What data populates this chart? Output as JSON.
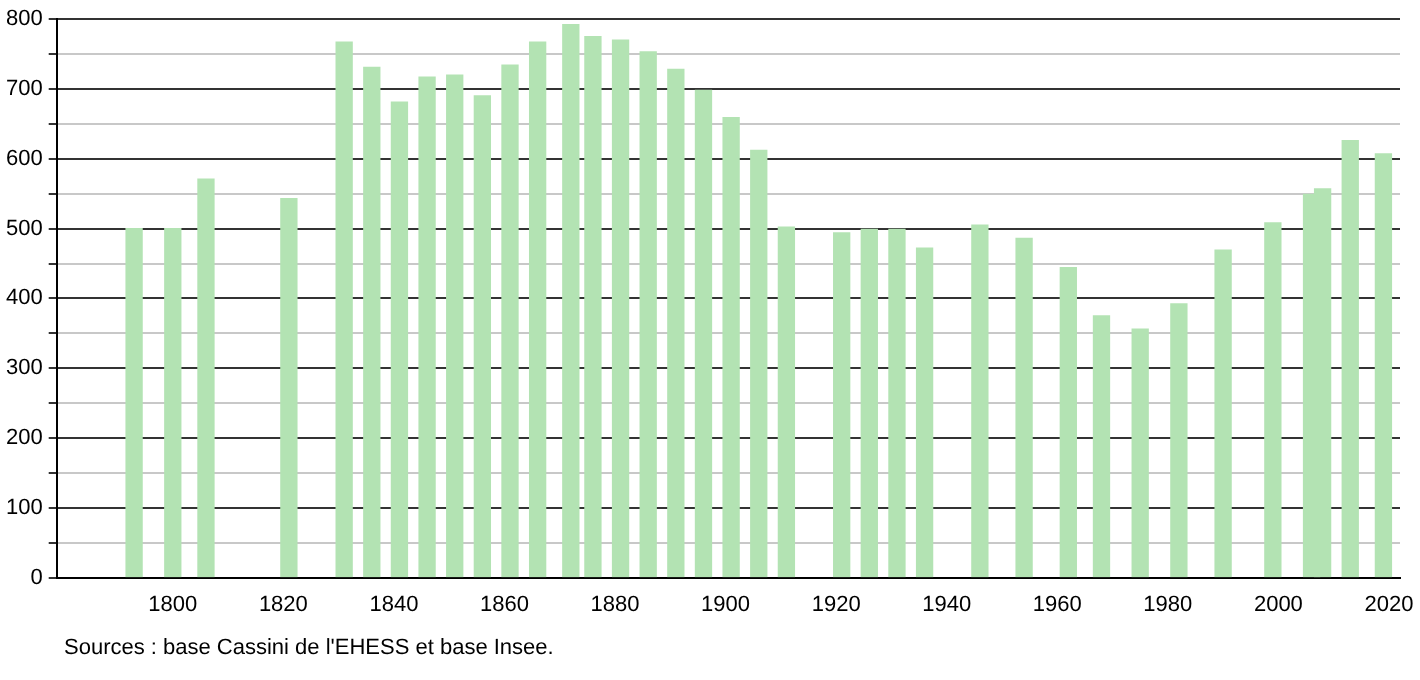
{
  "chart_data": {
    "type": "bar",
    "x": [
      1793,
      1800,
      1806,
      1821,
      1831,
      1836,
      1841,
      1846,
      1851,
      1856,
      1861,
      1866,
      1872,
      1876,
      1881,
      1886,
      1891,
      1896,
      1901,
      1906,
      1911,
      1921,
      1926,
      1931,
      1936,
      1946,
      1954,
      1962,
      1968,
      1975,
      1982,
      1990,
      1999,
      2006,
      2008,
      2013,
      2019
    ],
    "values": [
      500,
      500,
      571,
      543,
      767,
      731,
      681,
      717,
      720,
      690,
      734,
      767,
      792,
      775,
      770,
      753,
      728,
      698,
      659,
      612,
      502,
      494,
      499,
      499,
      472,
      505,
      486,
      444,
      375,
      356,
      392,
      469,
      508,
      549,
      557,
      626,
      607
    ],
    "color": "#b3e3b3",
    "xlim": [
      1779,
      2022
    ],
    "xticks": [
      1800,
      1820,
      1840,
      1860,
      1880,
      1900,
      1920,
      1940,
      1960,
      1980,
      2000,
      2020
    ],
    "ylim": [
      0,
      800
    ],
    "yticks": [
      0,
      {
        "value": 50,
        "label": null
      },
      100,
      {
        "value": 150,
        "label": null
      },
      200,
      {
        "value": 250,
        "label": null
      },
      300,
      {
        "value": 350,
        "label": null
      },
      400,
      {
        "value": 450,
        "label": null
      },
      500,
      {
        "value": 550,
        "label": null
      },
      600,
      {
        "value": 650,
        "label": null
      },
      700,
      {
        "value": 750,
        "label": null
      },
      800
    ],
    "grid": "y",
    "legend": false,
    "annotations": [
      "Sources : base Cassini de l'EHESS et base Insee."
    ]
  }
}
